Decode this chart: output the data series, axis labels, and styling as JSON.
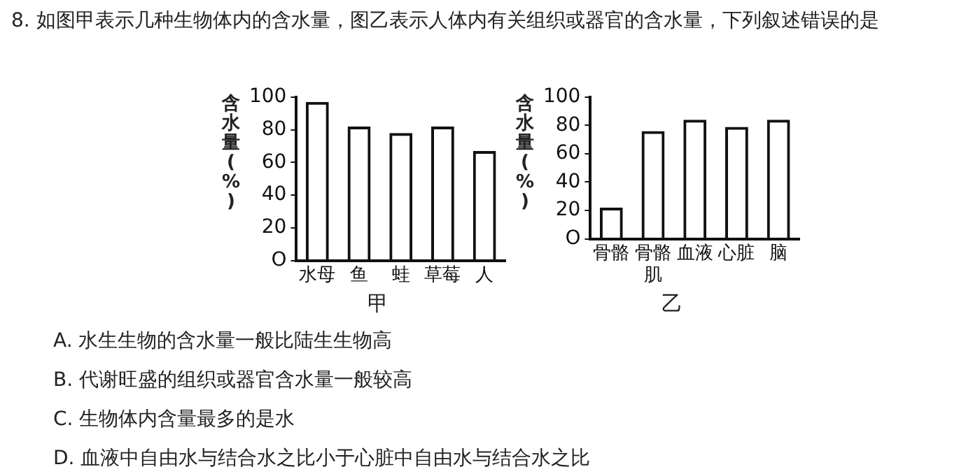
{
  "chart_data": [
    {
      "type": "bar",
      "xlabel": "甲",
      "ylabel": "含水量(%)",
      "categories": [
        "水母",
        "鱼",
        "蛙",
        "草莓",
        "人"
      ],
      "values": [
        97,
        82,
        78,
        82,
        67
      ],
      "color": "#111111",
      "ylim": [
        0,
        100
      ],
      "yticks": [
        {
          "value": 0,
          "label": "O"
        },
        20,
        40,
        60,
        80,
        100
      ],
      "grid": false,
      "legend": false,
      "annotations": [
        "8. 如图甲表示几种生物体内的含水量，图乙表示人体内有关组织或器官的含水量，下列叙述错误的是",
        "A. 水生生物的含水量一般比陆生生物高",
        "B. 代谢旺盛的组织或器官含水量一般较高",
        "C. 生物体内含量最多的是水",
        "D. 血液中自由水与结合水之比小于心脏中自由水与结合水之比"
      ]
    },
    {
      "type": "bar",
      "xlabel": "乙",
      "ylabel": "含水量(%)",
      "categories": [
        "骨骼",
        "骨骼肌",
        "血液",
        "心脏",
        "脑"
      ],
      "values": [
        22,
        76,
        84,
        79,
        84
      ],
      "color": "#111111",
      "ylim": [
        0,
        100
      ],
      "yticks": [
        {
          "value": 0,
          "label": "O"
        },
        20,
        40,
        60,
        80,
        100
      ],
      "grid": false,
      "legend": false
    }
  ]
}
